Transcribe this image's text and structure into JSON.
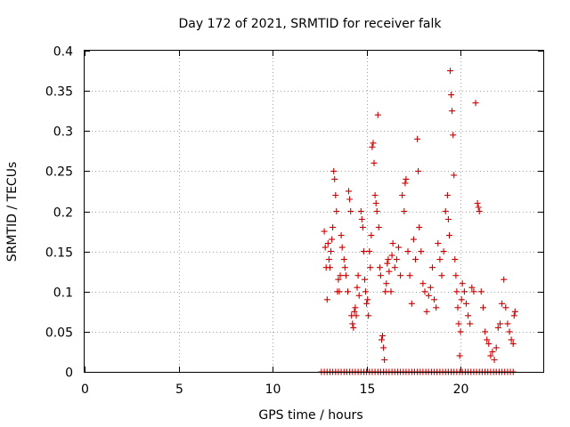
{
  "chart_data": {
    "type": "scatter",
    "title": "Day 172 of 2021, SRMTID for receiver falk",
    "xlabel": "GPS time / hours",
    "ylabel": "SRMTID / TECUs",
    "xlim": [
      0,
      24.4
    ],
    "ylim": [
      0,
      0.4
    ],
    "xticks": [
      0,
      5,
      10,
      15,
      20
    ],
    "xtick_labels": [
      "0",
      "5",
      "10",
      "15",
      "20"
    ],
    "yticks": [
      0,
      0.05,
      0.1,
      0.15,
      0.2,
      0.25,
      0.3,
      0.35,
      0.4
    ],
    "ytick_labels": [
      "0",
      "0.05",
      "0.1",
      "0.15",
      "0.2",
      "0.25",
      "0.3",
      "0.35",
      "0.4"
    ],
    "grid": true,
    "marker": "+",
    "color": "#cc0000",
    "series": [
      {
        "name": "SRMTID",
        "points": [
          [
            12.75,
            0.175
          ],
          [
            12.8,
            0.155
          ],
          [
            12.85,
            0.13
          ],
          [
            12.9,
            0.09
          ],
          [
            12.95,
            0.16
          ],
          [
            13.0,
            0.14
          ],
          [
            13.05,
            0.13
          ],
          [
            13.1,
            0.15
          ],
          [
            13.15,
            0.165
          ],
          [
            13.2,
            0.18
          ],
          [
            13.25,
            0.25
          ],
          [
            13.3,
            0.24
          ],
          [
            13.35,
            0.22
          ],
          [
            13.4,
            0.2
          ],
          [
            13.45,
            0.1
          ],
          [
            13.5,
            0.115
          ],
          [
            13.55,
            0.1
          ],
          [
            13.6,
            0.12
          ],
          [
            13.65,
            0.17
          ],
          [
            13.7,
            0.155
          ],
          [
            13.8,
            0.14
          ],
          [
            13.85,
            0.13
          ],
          [
            13.9,
            0.12
          ],
          [
            14.0,
            0.1
          ],
          [
            14.05,
            0.225
          ],
          [
            14.1,
            0.215
          ],
          [
            14.15,
            0.2
          ],
          [
            14.2,
            0.07
          ],
          [
            14.25,
            0.06
          ],
          [
            14.3,
            0.055
          ],
          [
            14.35,
            0.075
          ],
          [
            14.4,
            0.08
          ],
          [
            14.45,
            0.07
          ],
          [
            14.5,
            0.105
          ],
          [
            14.55,
            0.12
          ],
          [
            14.6,
            0.095
          ],
          [
            14.7,
            0.2
          ],
          [
            14.75,
            0.19
          ],
          [
            14.8,
            0.18
          ],
          [
            14.85,
            0.15
          ],
          [
            14.9,
            0.115
          ],
          [
            14.95,
            0.1
          ],
          [
            15.0,
            0.085
          ],
          [
            15.05,
            0.09
          ],
          [
            15.1,
            0.07
          ],
          [
            15.15,
            0.15
          ],
          [
            15.2,
            0.13
          ],
          [
            15.25,
            0.17
          ],
          [
            15.3,
            0.28
          ],
          [
            15.35,
            0.285
          ],
          [
            15.4,
            0.26
          ],
          [
            15.45,
            0.22
          ],
          [
            15.5,
            0.21
          ],
          [
            15.55,
            0.2
          ],
          [
            15.6,
            0.32
          ],
          [
            15.65,
            0.18
          ],
          [
            15.7,
            0.13
          ],
          [
            15.75,
            0.12
          ],
          [
            15.8,
            0.04
          ],
          [
            15.85,
            0.045
          ],
          [
            15.9,
            0.03
          ],
          [
            15.95,
            0.015
          ],
          [
            16.0,
            0.1
          ],
          [
            16.05,
            0.11
          ],
          [
            16.1,
            0.135
          ],
          [
            16.15,
            0.14
          ],
          [
            16.2,
            0.125
          ],
          [
            16.3,
            0.1
          ],
          [
            16.35,
            0.145
          ],
          [
            16.4,
            0.16
          ],
          [
            16.5,
            0.13
          ],
          [
            16.6,
            0.14
          ],
          [
            16.7,
            0.155
          ],
          [
            16.8,
            0.12
          ],
          [
            16.9,
            0.22
          ],
          [
            17.0,
            0.2
          ],
          [
            17.05,
            0.235
          ],
          [
            17.1,
            0.24
          ],
          [
            17.2,
            0.15
          ],
          [
            17.3,
            0.12
          ],
          [
            17.4,
            0.085
          ],
          [
            17.5,
            0.165
          ],
          [
            17.6,
            0.14
          ],
          [
            17.7,
            0.29
          ],
          [
            17.75,
            0.25
          ],
          [
            17.8,
            0.18
          ],
          [
            17.9,
            0.15
          ],
          [
            18.0,
            0.11
          ],
          [
            18.1,
            0.1
          ],
          [
            18.2,
            0.075
          ],
          [
            18.3,
            0.095
          ],
          [
            18.4,
            0.105
          ],
          [
            18.5,
            0.13
          ],
          [
            18.6,
            0.09
          ],
          [
            18.7,
            0.08
          ],
          [
            18.8,
            0.16
          ],
          [
            18.9,
            0.14
          ],
          [
            19.0,
            0.12
          ],
          [
            19.1,
            0.15
          ],
          [
            19.2,
            0.2
          ],
          [
            19.3,
            0.22
          ],
          [
            19.35,
            0.19
          ],
          [
            19.4,
            0.17
          ],
          [
            19.45,
            0.375
          ],
          [
            19.5,
            0.345
          ],
          [
            19.55,
            0.325
          ],
          [
            19.6,
            0.295
          ],
          [
            19.65,
            0.245
          ],
          [
            19.7,
            0.14
          ],
          [
            19.75,
            0.12
          ],
          [
            19.8,
            0.1
          ],
          [
            19.85,
            0.08
          ],
          [
            19.9,
            0.06
          ],
          [
            19.95,
            0.02
          ],
          [
            20.0,
            0.05
          ],
          [
            20.05,
            0.09
          ],
          [
            20.1,
            0.11
          ],
          [
            20.2,
            0.1
          ],
          [
            20.3,
            0.085
          ],
          [
            20.4,
            0.07
          ],
          [
            20.5,
            0.06
          ],
          [
            20.6,
            0.105
          ],
          [
            20.7,
            0.1
          ],
          [
            20.8,
            0.335
          ],
          [
            20.9,
            0.21
          ],
          [
            20.95,
            0.205
          ],
          [
            21.0,
            0.2
          ],
          [
            21.1,
            0.1
          ],
          [
            21.2,
            0.08
          ],
          [
            21.3,
            0.05
          ],
          [
            21.4,
            0.04
          ],
          [
            21.5,
            0.035
          ],
          [
            21.6,
            0.02
          ],
          [
            21.7,
            0.025
          ],
          [
            21.8,
            0.015
          ],
          [
            21.9,
            0.03
          ],
          [
            22.0,
            0.055
          ],
          [
            22.1,
            0.06
          ],
          [
            22.2,
            0.085
          ],
          [
            22.3,
            0.115
          ],
          [
            22.4,
            0.08
          ],
          [
            22.5,
            0.06
          ],
          [
            22.6,
            0.05
          ],
          [
            22.7,
            0.04
          ],
          [
            22.8,
            0.035
          ],
          [
            22.85,
            0.07
          ],
          [
            22.9,
            0.075
          ]
        ]
      },
      {
        "name": "zero baseline",
        "x_range": [
          12.6,
          22.9
        ],
        "x_step": 0.15,
        "y": 0
      }
    ]
  }
}
